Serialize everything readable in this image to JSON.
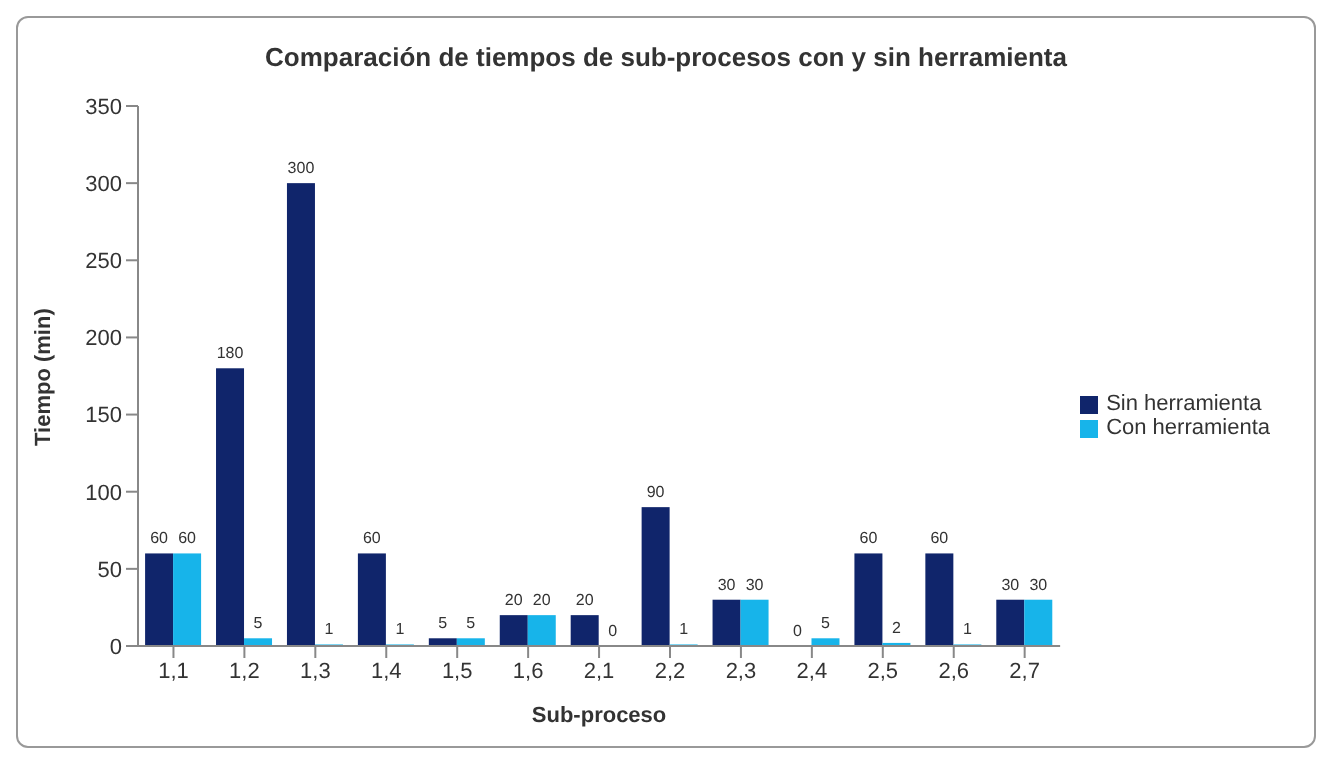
{
  "chart_data": {
    "type": "bar",
    "title": "Comparación de tiempos de sub-procesos con y sin herramienta",
    "xlabel": "Sub-proceso",
    "ylabel": "Tiempo (min)",
    "categories": [
      "1,1",
      "1,2",
      "1,3",
      "1,4",
      "1,5",
      "1,6",
      "2,1",
      "2,2",
      "2,3",
      "2,4",
      "2,5",
      "2,6",
      "2,7"
    ],
    "series": [
      {
        "name": "Sin herramienta",
        "color": "#10256b",
        "values": [
          60,
          180,
          300,
          60,
          5,
          20,
          20,
          90,
          30,
          0,
          60,
          60,
          30
        ]
      },
      {
        "name": "Con herramienta",
        "color": "#17b4ea",
        "values": [
          60,
          5,
          1,
          1,
          5,
          20,
          0,
          1,
          30,
          5,
          2,
          1,
          30
        ]
      }
    ],
    "ylim": [
      0,
      350
    ],
    "yticks": [
      0,
      50,
      100,
      150,
      200,
      250,
      300,
      350
    ],
    "grid": false,
    "legend": "right",
    "data_labels": true
  }
}
